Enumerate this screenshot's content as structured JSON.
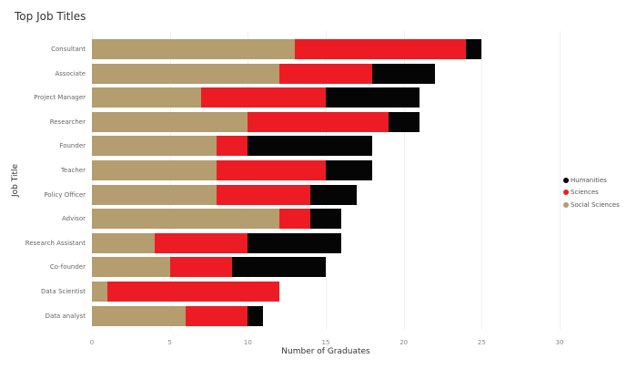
{
  "chart_data": {
    "type": "bar",
    "orientation": "horizontal",
    "stacked": true,
    "title": "Top Job Titles",
    "xlabel": "Number of Graduates",
    "ylabel": "Job Title",
    "xlim": [
      0,
      30
    ],
    "xticks": [
      0,
      5,
      10,
      15,
      20,
      25,
      30
    ],
    "grid": true,
    "legend_position": "right",
    "categories": [
      "Consultant",
      "Associate",
      "Project Manager",
      "Researcher",
      "Founder",
      "Teacher",
      "Policy Officer",
      "Advisor",
      "Research Assistant",
      "Co-founder",
      "Data Scientist",
      "Data analyst"
    ],
    "series": [
      {
        "name": "Social Sciences",
        "color": "#b49d6e",
        "values": [
          13,
          12,
          7,
          10,
          8,
          8,
          8,
          12,
          4,
          5,
          1,
          6
        ]
      },
      {
        "name": "Sciences",
        "color": "#ed1c24",
        "values": [
          11,
          6,
          8,
          9,
          2,
          7,
          6,
          2,
          6,
          4,
          11,
          4
        ]
      },
      {
        "name": "Humanities",
        "color": "#050505",
        "values": [
          1,
          4,
          6,
          2,
          8,
          3,
          3,
          2,
          6,
          6,
          0,
          1
        ]
      }
    ],
    "legend": [
      "Humanities",
      "Sciences",
      "Social Sciences"
    ]
  }
}
